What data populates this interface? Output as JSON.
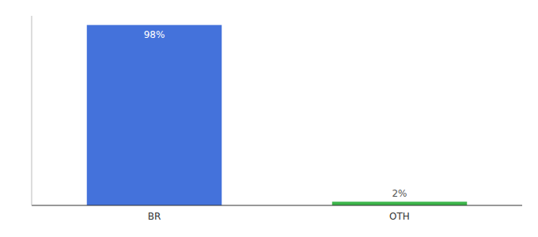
{
  "chart_data": {
    "type": "bar",
    "categories": [
      "BR",
      "OTH"
    ],
    "values": [
      98,
      2
    ],
    "colors": [
      "#4472db",
      "#3cb54a"
    ],
    "value_labels": [
      "98%",
      "2%"
    ],
    "data_labels": true,
    "ylim": [
      0,
      103
    ],
    "tick_labels": "x",
    "grid": false
  }
}
